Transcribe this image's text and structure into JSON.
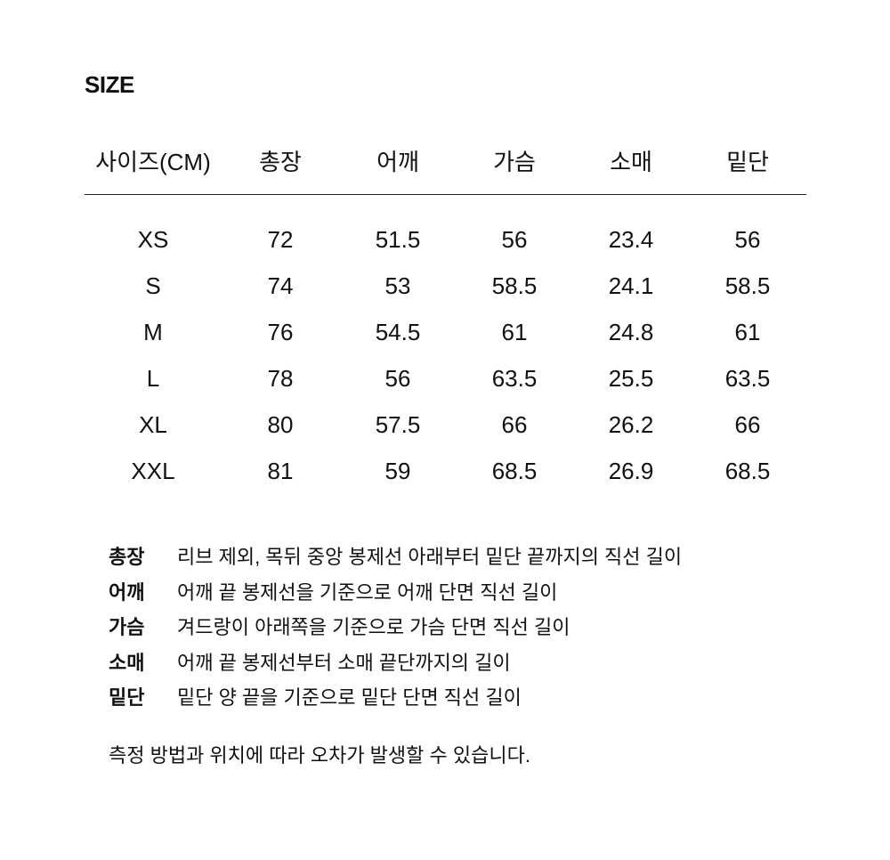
{
  "title": "SIZE",
  "table": {
    "headers": [
      "사이즈(CM)",
      "총장",
      "어깨",
      "가슴",
      "소매",
      "밑단"
    ],
    "rows": [
      [
        "XS",
        "72",
        "51.5",
        "56",
        "23.4",
        "56"
      ],
      [
        "S",
        "74",
        "53",
        "58.5",
        "24.1",
        "58.5"
      ],
      [
        "M",
        "76",
        "54.5",
        "61",
        "24.8",
        "61"
      ],
      [
        "L",
        "78",
        "56",
        "63.5",
        "25.5",
        "63.5"
      ],
      [
        "XL",
        "80",
        "57.5",
        "66",
        "26.2",
        "66"
      ],
      [
        "XXL",
        "81",
        "59",
        "68.5",
        "26.9",
        "68.5"
      ]
    ]
  },
  "notes": [
    {
      "term": "총장",
      "desc": "리브 제외, 목뒤 중앙 봉제선 아래부터 밑단 끝까지의 직선 길이"
    },
    {
      "term": "어깨",
      "desc": "어깨 끝 봉제선을 기준으로 어깨 단면 직선 길이"
    },
    {
      "term": "가슴",
      "desc": "겨드랑이 아래쪽을 기준으로 가슴 단면 직선 길이"
    },
    {
      "term": "소매",
      "desc": "어깨 끝 봉제선부터 소매 끝단까지의 길이"
    },
    {
      "term": "밑단",
      "desc": "밑단 양 끝을 기준으로 밑단 단면 직선 길이"
    }
  ],
  "footnote": "측정 방법과 위치에 따라 오차가 발생할 수 있습니다."
}
